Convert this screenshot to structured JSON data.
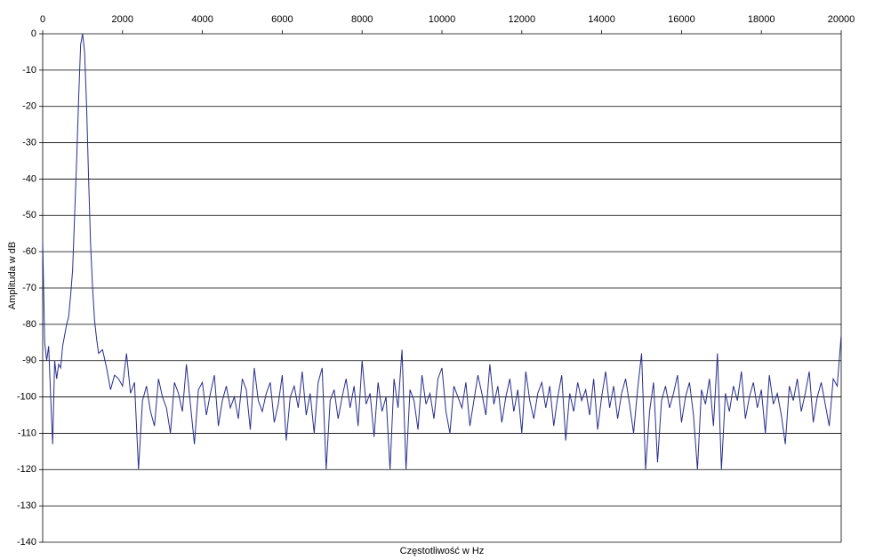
{
  "chart_data": {
    "type": "line",
    "x_label": "Częstotliwość w Hz",
    "y_label": "Amplituda w dB",
    "xlim": [
      0,
      20000
    ],
    "xticks": [
      0,
      2000,
      4000,
      6000,
      8000,
      10000,
      12000,
      14000,
      16000,
      18000,
      20000
    ],
    "ylim": [
      -140,
      0
    ],
    "yticks": [
      0,
      -10,
      -20,
      -30,
      -40,
      -50,
      -60,
      -70,
      -80,
      -90,
      -100,
      -110,
      -120,
      -130,
      -140
    ],
    "grid": true,
    "x": [
      0,
      50,
      100,
      150,
      200,
      250,
      300,
      350,
      400,
      450,
      500,
      550,
      600,
      650,
      700,
      750,
      800,
      850,
      900,
      950,
      1000,
      1050,
      1100,
      1150,
      1200,
      1250,
      1300,
      1350,
      1400,
      1500,
      1600,
      1700,
      1800,
      1900,
      2000,
      2100,
      2200,
      2300,
      2400,
      2500,
      2600,
      2700,
      2800,
      2900,
      3000,
      3100,
      3200,
      3300,
      3400,
      3500,
      3600,
      3700,
      3800,
      3900,
      4000,
      4100,
      4200,
      4300,
      4400,
      4500,
      4600,
      4700,
      4800,
      4900,
      5000,
      5100,
      5200,
      5300,
      5400,
      5500,
      5600,
      5700,
      5800,
      5900,
      6000,
      6100,
      6200,
      6300,
      6400,
      6500,
      6600,
      6700,
      6800,
      6900,
      7000,
      7100,
      7200,
      7300,
      7400,
      7500,
      7600,
      7700,
      7800,
      7900,
      8000,
      8100,
      8200,
      8300,
      8400,
      8500,
      8600,
      8700,
      8800,
      8900,
      9000,
      9100,
      9200,
      9300,
      9400,
      9500,
      9600,
      9700,
      9800,
      9900,
      10000,
      10100,
      10200,
      10300,
      10400,
      10500,
      10600,
      10700,
      10800,
      10900,
      11000,
      11100,
      11200,
      11300,
      11400,
      11500,
      11600,
      11700,
      11800,
      11900,
      12000,
      12100,
      12200,
      12300,
      12400,
      12500,
      12600,
      12700,
      12800,
      12900,
      13000,
      13100,
      13200,
      13300,
      13400,
      13500,
      13600,
      13700,
      13800,
      13900,
      14000,
      14100,
      14200,
      14300,
      14400,
      14500,
      14600,
      14700,
      14800,
      14900,
      15000,
      15100,
      15200,
      15300,
      15400,
      15500,
      15600,
      15700,
      15800,
      15900,
      16000,
      16100,
      16200,
      16300,
      16400,
      16500,
      16600,
      16700,
      16800,
      16900,
      17000,
      17100,
      17200,
      17300,
      17400,
      17500,
      17600,
      17700,
      17800,
      17900,
      18000,
      18100,
      18200,
      18300,
      18400,
      18500,
      18600,
      18700,
      18800,
      18900,
      19000,
      19100,
      19200,
      19300,
      19400,
      19500,
      19600,
      19700,
      19800,
      19900,
      20000
    ],
    "series": [
      {
        "color": "#2a2d8c",
        "values": [
          -57,
          -85,
          -90,
          -86,
          -100,
          -113,
          -90,
          -95,
          -91,
          -92,
          -86,
          -83,
          -80,
          -78,
          -72,
          -65,
          -50,
          -35,
          -18,
          -3,
          0,
          -5,
          -20,
          -40,
          -58,
          -70,
          -79,
          -84,
          -88,
          -87,
          -92,
          -98,
          -94,
          -95,
          -97,
          -88,
          -99,
          -96,
          -120,
          -101,
          -97,
          -104,
          -108,
          -95,
          -100,
          -103,
          -110,
          -96,
          -99,
          -104,
          -91,
          -102,
          -113,
          -98,
          -96,
          -105,
          -99,
          -94,
          -108,
          -101,
          -97,
          -103,
          -100,
          -106,
          -95,
          -98,
          -109,
          -92,
          -101,
          -104,
          -99,
          -96,
          -107,
          -102,
          -94,
          -112,
          -100,
          -97,
          -103,
          -93,
          -105,
          -99,
          -110,
          -96,
          -92,
          -120,
          -101,
          -98,
          -106,
          -100,
          -95,
          -103,
          -97,
          -108,
          -90,
          -102,
          -99,
          -111,
          -96,
          -104,
          -100,
          -120,
          -95,
          -103,
          -87,
          -120,
          -98,
          -101,
          -109,
          -94,
          -102,
          -99,
          -106,
          -95,
          -92,
          -104,
          -110,
          -97,
          -100,
          -103,
          -96,
          -108,
          -101,
          -94,
          -99,
          -105,
          -91,
          -102,
          -97,
          -107,
          -100,
          -95,
          -104,
          -98,
          -110,
          -93,
          -101,
          -106,
          -99,
          -96,
          -103,
          -97,
          -108,
          -100,
          -94,
          -112,
          -99,
          -104,
          -96,
          -101,
          -98,
          -105,
          -95,
          -109,
          -100,
          -93,
          -103,
          -97,
          -106,
          -99,
          -95,
          -102,
          -110,
          -98,
          -88,
          -120,
          -104,
          -96,
          -118,
          -101,
          -97,
          -103,
          -99,
          -94,
          -107,
          -100,
          -96,
          -105,
          -120,
          -98,
          -102,
          -95,
          -108,
          -88,
          -120,
          -99,
          -104,
          -97,
          -101,
          -93,
          -106,
          -100,
          -96,
          -103,
          -98,
          -110,
          -94,
          -102,
          -99,
          -105,
          -113,
          -97,
          -101,
          -95,
          -104,
          -99,
          -93,
          -107,
          -100,
          -96,
          -102,
          -108,
          -95,
          -97,
          -83
        ]
      }
    ]
  }
}
